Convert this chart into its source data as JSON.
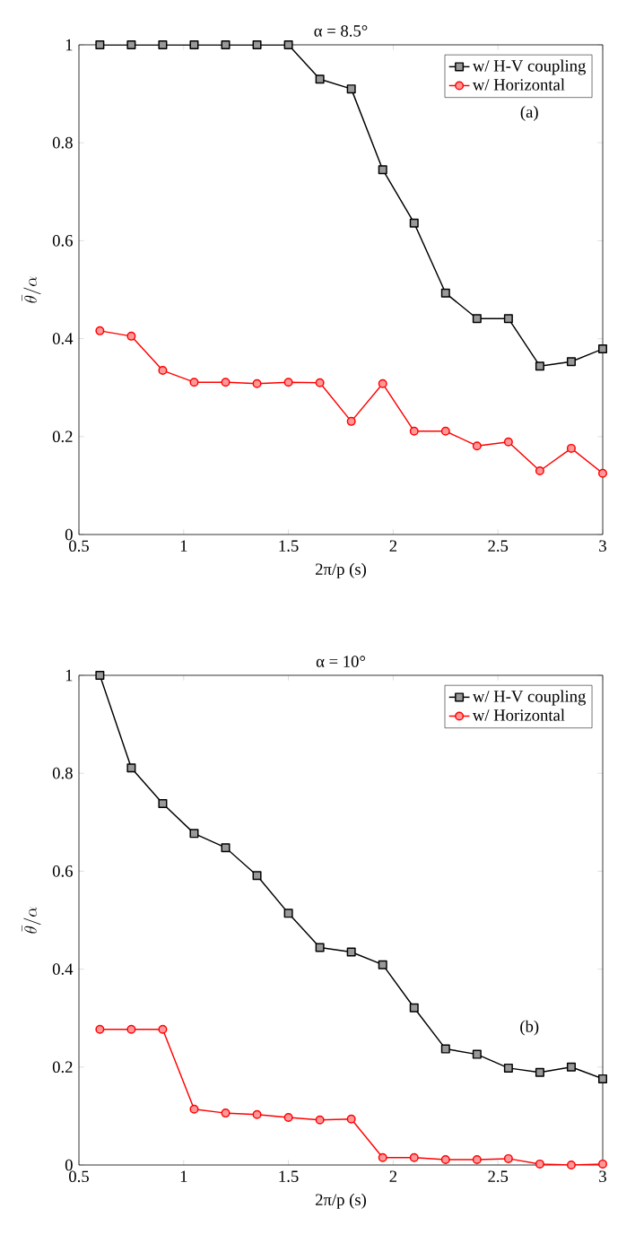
{
  "chart_data": [
    {
      "type": "line",
      "title": "α = 8.5°",
      "xlabel": "2π/p (s)",
      "ylabel": "\\bar{\\theta}/\\alpha",
      "annotations": [
        "(a)"
      ],
      "x": [
        0.6,
        0.75,
        0.9,
        1.05,
        1.2,
        1.35,
        1.5,
        1.65,
        1.8,
        1.95,
        2.1,
        2.25,
        2.4,
        2.55,
        2.7,
        2.85,
        3.0
      ],
      "xlim": [
        0.5,
        3
      ],
      "xticks": [
        0.5,
        1,
        1.5,
        2,
        2.5,
        3
      ],
      "ylim": [
        0,
        1
      ],
      "yticks": [
        0,
        0.2,
        0.4,
        0.6,
        0.8,
        1
      ],
      "legend": "top right",
      "grid": false,
      "series": [
        {
          "name": "w/ H-V coupling",
          "color": "#000000",
          "marker": "square",
          "values": [
            1,
            1,
            1,
            1,
            1,
            1,
            1,
            0.93,
            0.91,
            0.745,
            0.636,
            0.493,
            0.441,
            0.441,
            0.344,
            0.353,
            0.379
          ]
        },
        {
          "name": "w/ Horizontal",
          "color": "#ff0000",
          "marker": "circle",
          "values": [
            0.416,
            0.405,
            0.335,
            0.311,
            0.311,
            0.308,
            0.311,
            0.31,
            0.231,
            0.308,
            0.211,
            0.211,
            0.181,
            0.189,
            0.13,
            0.176,
            0.125
          ]
        }
      ]
    },
    {
      "type": "line",
      "title": "α = 10°",
      "xlabel": "2π/p (s)",
      "ylabel": "\\bar{\\theta}/\\alpha",
      "annotations": [
        "(b)"
      ],
      "x": [
        0.6,
        0.75,
        0.9,
        1.05,
        1.2,
        1.35,
        1.5,
        1.65,
        1.8,
        1.95,
        2.1,
        2.25,
        2.4,
        2.55,
        2.7,
        2.85,
        3.0
      ],
      "xlim": [
        0.5,
        3
      ],
      "xticks": [
        0.5,
        1,
        1.5,
        2,
        2.5,
        3
      ],
      "ylim": [
        0,
        1
      ],
      "yticks": [
        0,
        0.2,
        0.4,
        0.6,
        0.8,
        1
      ],
      "legend": "top right",
      "grid": false,
      "series": [
        {
          "name": "w/ H-V coupling",
          "color": "#000000",
          "marker": "square",
          "values": [
            1.0,
            0.811,
            0.738,
            0.677,
            0.648,
            0.591,
            0.514,
            0.444,
            0.435,
            0.409,
            0.321,
            0.237,
            0.226,
            0.198,
            0.189,
            0.2,
            0.176
          ]
        },
        {
          "name": "w/ Horizontal",
          "color": "#ff0000",
          "marker": "circle",
          "values": [
            0.277,
            0.277,
            0.277,
            0.114,
            0.106,
            0.103,
            0.097,
            0.092,
            0.094,
            0.015,
            0.015,
            0.011,
            0.011,
            0.013,
            0.002,
            0.0,
            0.002
          ]
        }
      ]
    }
  ]
}
